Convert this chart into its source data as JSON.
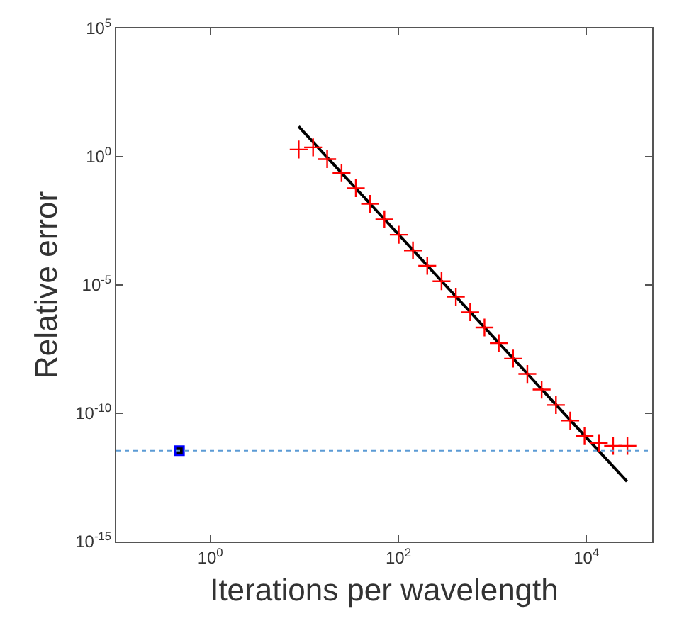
{
  "chart_data": {
    "type": "scatter",
    "xlabel": "Iterations per wavelength",
    "ylabel": "Relative error",
    "log": "xy",
    "xlim": [
      0.1,
      50000
    ],
    "ylim": [
      1e-15,
      100000
    ],
    "xticks": [
      {
        "value": 1,
        "label": "10$^{0}$"
      },
      {
        "value": 100,
        "label": "10$^{2}$"
      },
      {
        "value": 10000,
        "label": "10$^{4}$"
      }
    ],
    "yticks": [
      {
        "value": 1e-15,
        "label": "10$^{-15}$"
      },
      {
        "value": 1e-10,
        "label": "10$^{-10}$"
      },
      {
        "value": 1e-05,
        "label": "10$^{-5}$"
      },
      {
        "value": 1,
        "label": "10$^{0}$"
      },
      {
        "value": 100000,
        "label": "10$^{5}$"
      }
    ],
    "ref_lines": [
      {
        "axis": "y",
        "value": 3.5e-12,
        "color": "#5b9bd5",
        "line_style": "dotted"
      }
    ],
    "series": [
      {
        "type": "line",
        "color": "#000000",
        "marker": "none",
        "x": [
          8.7,
          27000
        ],
        "values": [
          15,
          2.2e-13
        ]
      },
      {
        "color": "#ff0000",
        "marker": "cross",
        "x": [
          8.71,
          12.4,
          17.5,
          24.9,
          35.3,
          50.1,
          71.1,
          101,
          143,
          203,
          288,
          409,
          581,
          824,
          1170,
          1660,
          2355,
          3342,
          4742,
          6730,
          9550,
          13550,
          19230,
          27290
        ],
        "values": [
          1.9,
          2.3,
          0.8,
          0.23,
          0.059,
          0.0145,
          0.0036,
          0.00091,
          0.00022,
          5.6e-05,
          1.4e-05,
          3.5e-06,
          8.7e-07,
          2.2e-07,
          5.4e-08,
          1.35e-08,
          3.4e-09,
          8.4e-10,
          2.1e-10,
          5.2e-11,
          1.3e-11,
          6.9e-12,
          5.4e-12,
          5.4e-12
        ]
      },
      {
        "color": "#0000ff",
        "marker": "square",
        "x": [
          0.47
        ],
        "values": [
          3.5e-12
        ]
      }
    ]
  }
}
